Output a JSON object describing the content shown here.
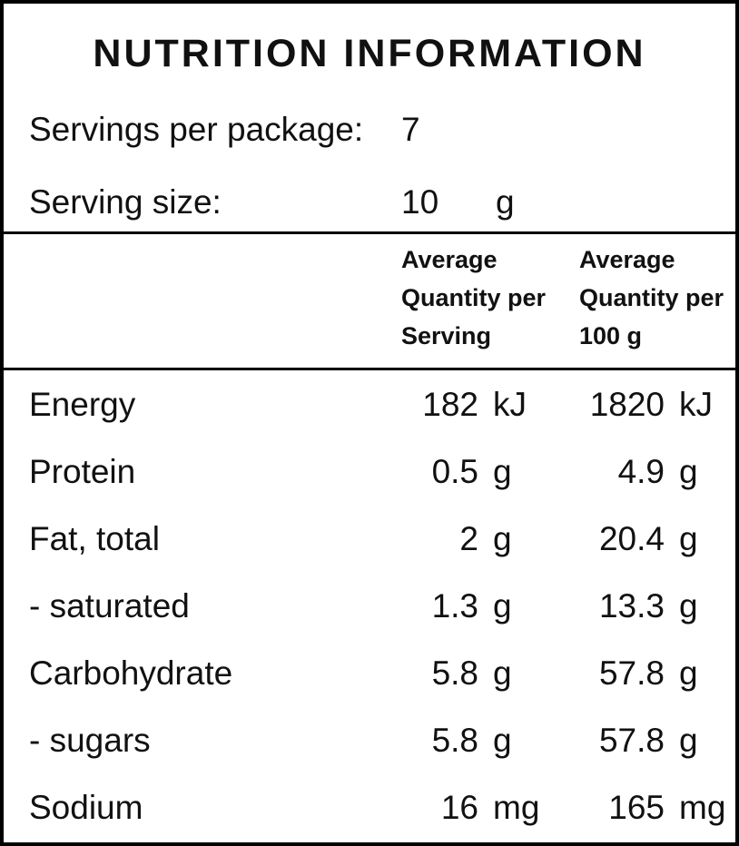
{
  "panel": {
    "title": "NUTRITION INFORMATION",
    "servings_per_package": {
      "label": "Servings per package:",
      "value": "7"
    },
    "serving_size": {
      "label": "Serving size:",
      "value": "10",
      "unit": "g"
    },
    "column_headers": {
      "per_serving": {
        "line1": "Average",
        "line2": "Quantity per",
        "line3": "Serving"
      },
      "per_100g": {
        "line1": "Average",
        "line2": "Quantity per",
        "line3": "100 g"
      }
    },
    "rows": [
      {
        "nutrient": "Energy",
        "per_serving_value": "182",
        "per_serving_unit": "kJ",
        "per_100g_value": "1820",
        "per_100g_unit": "kJ"
      },
      {
        "nutrient": "Protein",
        "per_serving_value": "0.5",
        "per_serving_unit": "g",
        "per_100g_value": "4.9",
        "per_100g_unit": "g"
      },
      {
        "nutrient": "Fat, total",
        "per_serving_value": "2",
        "per_serving_unit": "g",
        "per_100g_value": "20.4",
        "per_100g_unit": "g"
      },
      {
        "nutrient": "- saturated",
        "per_serving_value": "1.3",
        "per_serving_unit": "g",
        "per_100g_value": "13.3",
        "per_100g_unit": "g"
      },
      {
        "nutrient": "Carbohydrate",
        "per_serving_value": "5.8",
        "per_serving_unit": "g",
        "per_100g_value": "57.8",
        "per_100g_unit": "g"
      },
      {
        "nutrient": "- sugars",
        "per_serving_value": "5.8",
        "per_serving_unit": "g",
        "per_100g_value": "57.8",
        "per_100g_unit": "g"
      },
      {
        "nutrient": "Sodium",
        "per_serving_value": "16",
        "per_serving_unit": "mg",
        "per_100g_value": "165",
        "per_100g_unit": "mg"
      }
    ],
    "colors": {
      "background": "#ffffff",
      "border": "#000000",
      "text": "#111111"
    }
  }
}
